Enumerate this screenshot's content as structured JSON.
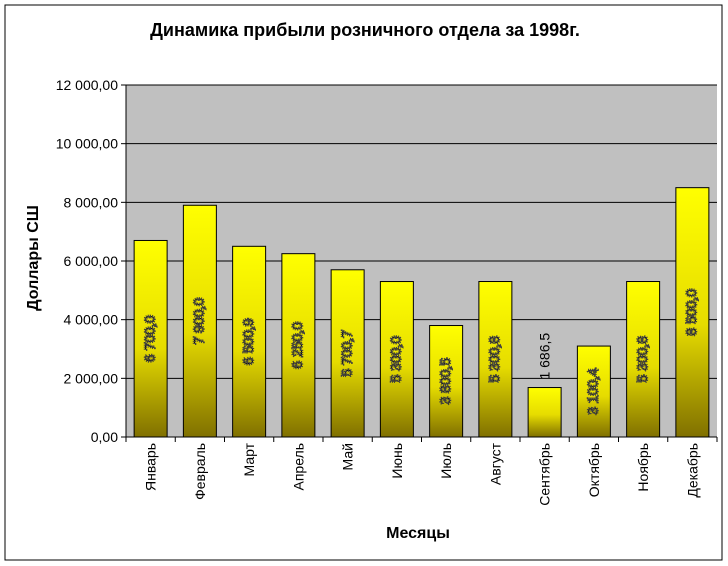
{
  "chart_data": {
    "type": "bar",
    "title": "Динамика прибыли розничного отдела за 1998г.",
    "x_label": "Месяцы",
    "y_label": "Доллары СШ",
    "categories": [
      "Январь",
      "Февраль",
      "Март",
      "Апрель",
      "Май",
      "Июнь",
      "Июль",
      "Август",
      "Сентябрь",
      "Октябрь",
      "Ноябрь",
      "Декабрь"
    ],
    "values": [
      6700.0,
      7900.0,
      6500.9,
      6250.0,
      5700.7,
      5300.0,
      3800.5,
      5300.8,
      1686.5,
      3100.4,
      5300.8,
      8500.0
    ],
    "value_labels": [
      "6 700,0",
      "7 900,0",
      "6 500,9",
      "6 250,0",
      "5 700,7",
      "5 300,0",
      "3 800,5",
      "5 300,8",
      "1 686,5",
      "3 100,4",
      "5 300,8",
      "8 500,0"
    ],
    "color": "#ffff00",
    "ylim": [
      0,
      12000
    ],
    "yticks": [
      {
        "value": 0,
        "label": "0,00"
      },
      {
        "value": 2000,
        "label": "2 000,00"
      },
      {
        "value": 4000,
        "label": "4 000,00"
      },
      {
        "value": 6000,
        "label": "6 000,00"
      },
      {
        "value": 8000,
        "label": "8 000,00"
      },
      {
        "value": 10000,
        "label": "10 000,00"
      },
      {
        "value": 12000,
        "label": "12 000,00"
      }
    ],
    "grid": true
  }
}
